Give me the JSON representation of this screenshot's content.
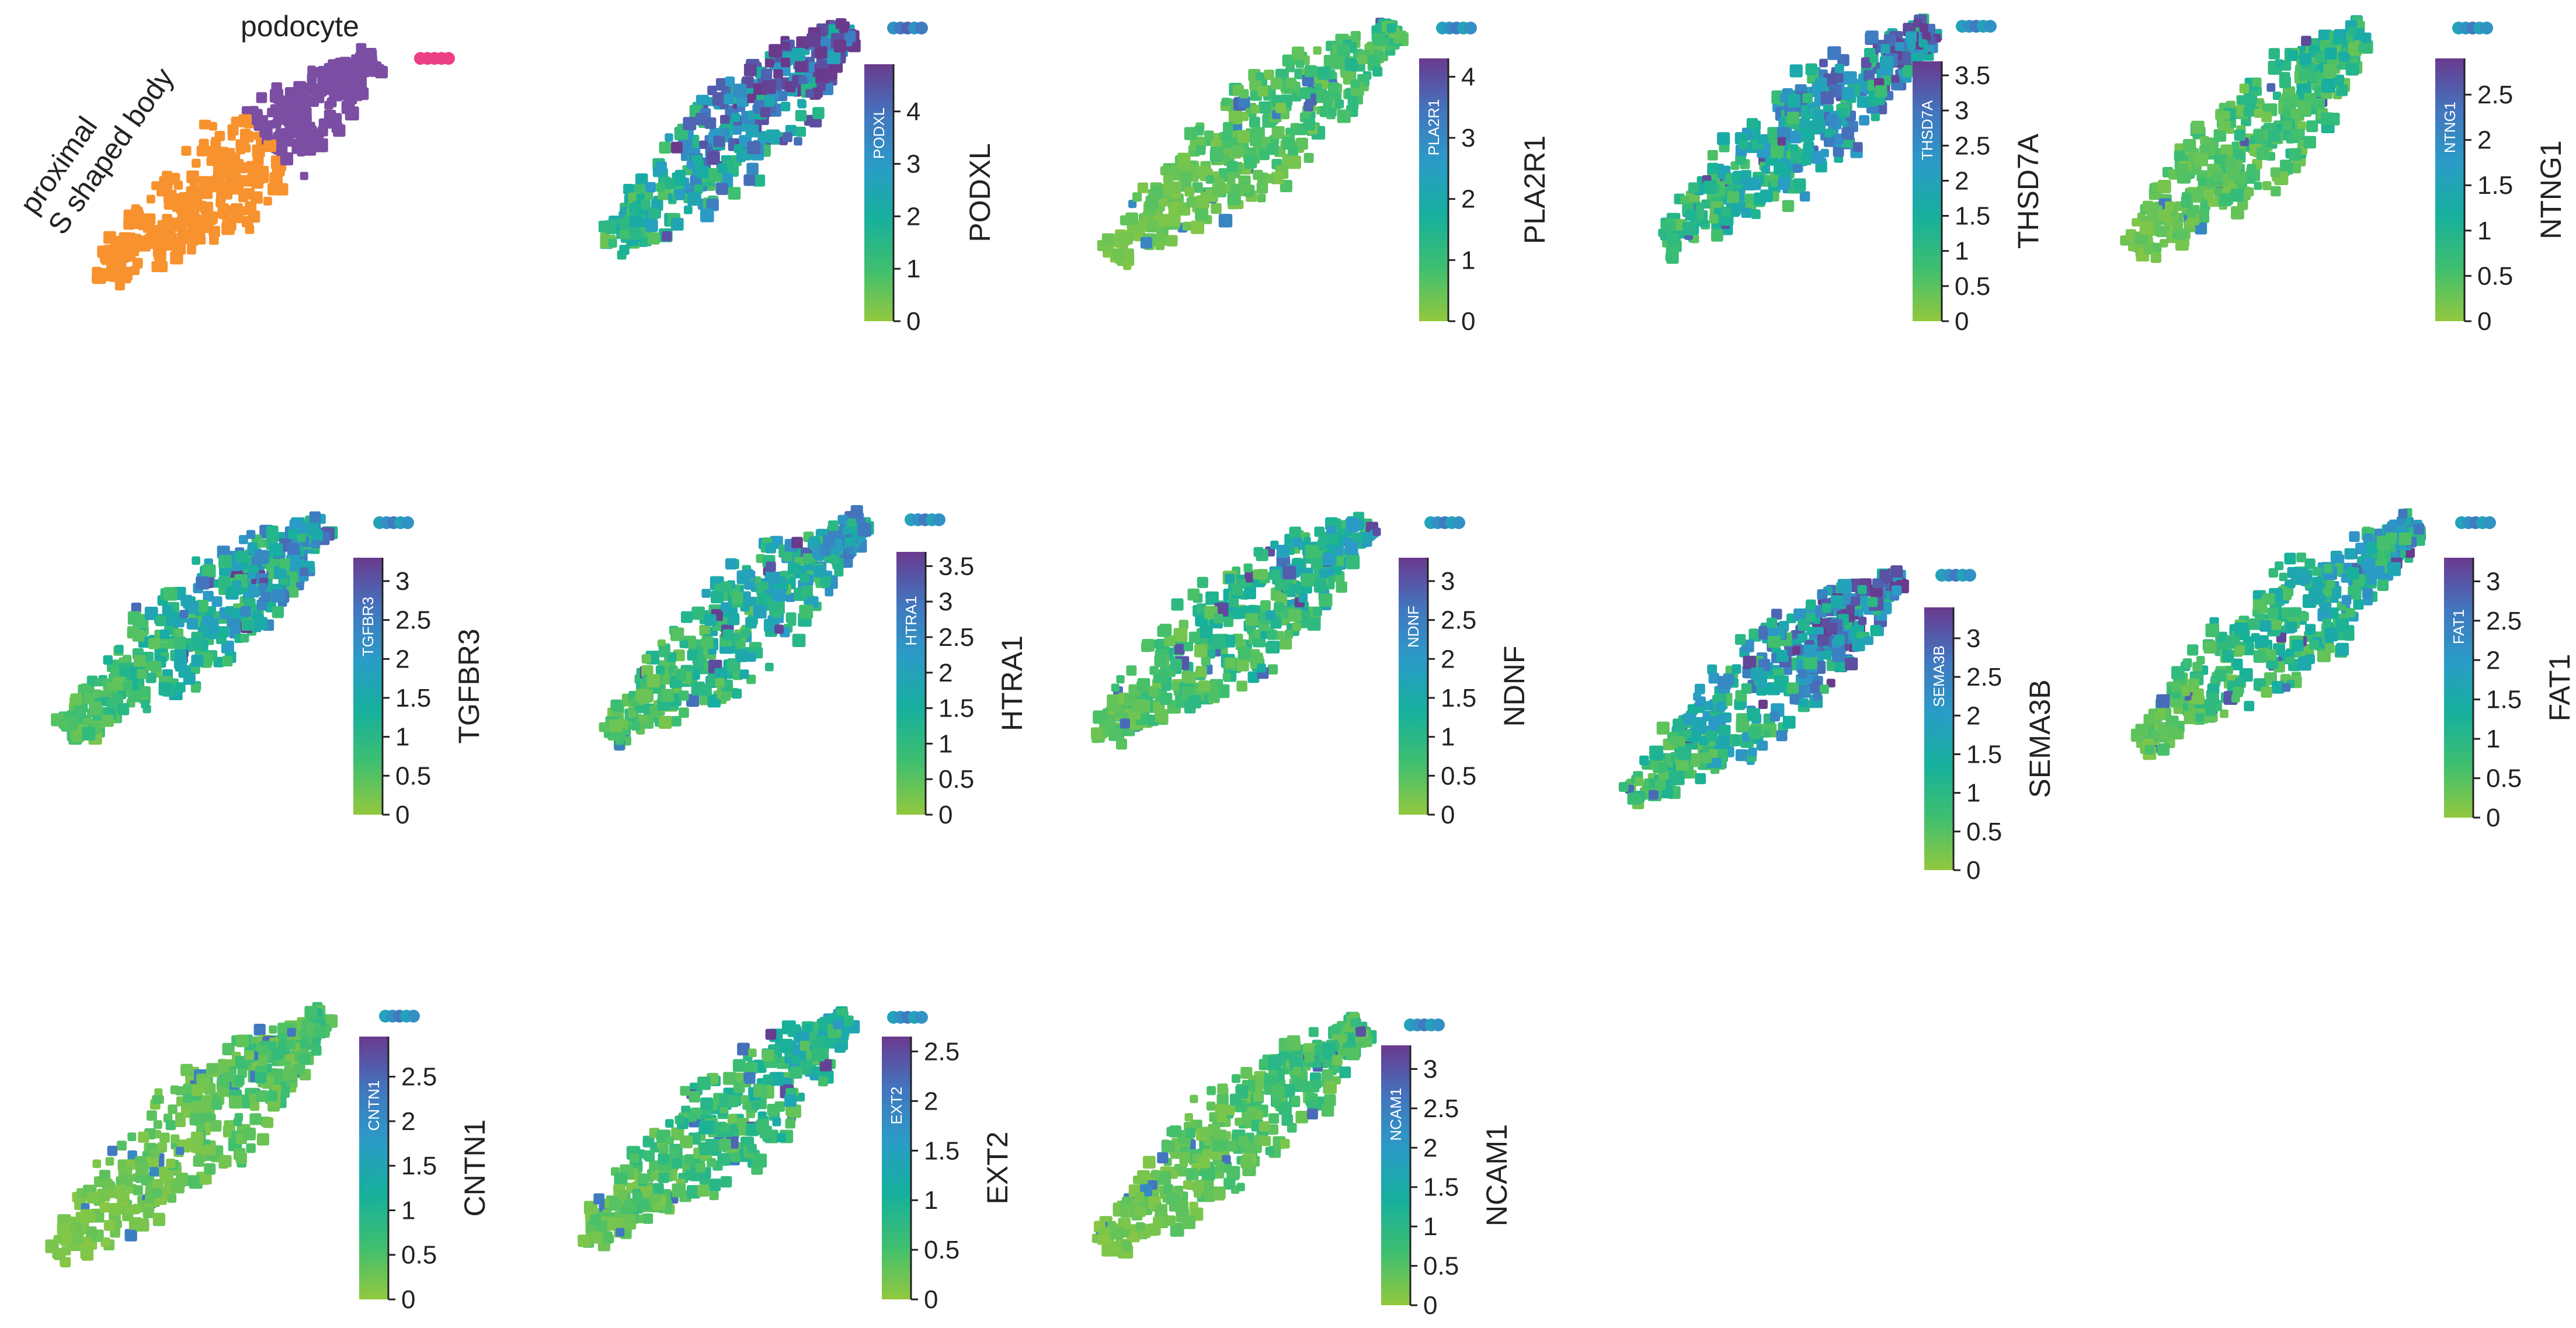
{
  "chart_data": [
    {
      "type": "scatter",
      "panel": "clusters",
      "labels": [
        "podocyte",
        "proximal",
        "S shaped body"
      ],
      "colors": {
        "proximal": "#f7922e",
        "podocyte": "#7b4ea3",
        "other": "#ec3f86"
      }
    },
    {
      "type": "scatter",
      "gene": "PODXL",
      "colorbar": {
        "ticks": [
          "0",
          "1",
          "2",
          "3",
          "4"
        ],
        "range": [
          0,
          4.9
        ]
      }
    },
    {
      "type": "scatter",
      "gene": "PLA2R1",
      "colorbar": {
        "ticks": [
          "0",
          "1",
          "2",
          "3",
          "4"
        ],
        "range": [
          0,
          4.3
        ]
      }
    },
    {
      "type": "scatter",
      "gene": "THSD7A",
      "colorbar": {
        "ticks": [
          "0",
          "0.5",
          "1",
          "1.5",
          "2",
          "2.5",
          "3",
          "3.5"
        ],
        "range": [
          0,
          3.7
        ]
      }
    },
    {
      "type": "scatter",
      "gene": "NTNG1",
      "colorbar": {
        "ticks": [
          "0",
          "0.5",
          "1",
          "1.5",
          "2",
          "2.5"
        ],
        "range": [
          0,
          2.9
        ]
      }
    },
    {
      "type": "scatter",
      "gene": "TGFBR3",
      "colorbar": {
        "ticks": [
          "0",
          "0.5",
          "1",
          "1.5",
          "2",
          "2.5",
          "3"
        ],
        "range": [
          0,
          3.3
        ]
      }
    },
    {
      "type": "scatter",
      "gene": "HTRA1",
      "colorbar": {
        "ticks": [
          "0",
          "0.5",
          "1",
          "1.5",
          "2",
          "2.5",
          "3",
          "3.5"
        ],
        "range": [
          0,
          3.7
        ]
      }
    },
    {
      "type": "scatter",
      "gene": "NDNF",
      "colorbar": {
        "ticks": [
          "0",
          "0.5",
          "1",
          "1.5",
          "2",
          "2.5",
          "3"
        ],
        "range": [
          0,
          3.3
        ]
      }
    },
    {
      "type": "scatter",
      "gene": "SEMA3B",
      "colorbar": {
        "ticks": [
          "0",
          "0.5",
          "1",
          "1.5",
          "2",
          "2.5",
          "3"
        ],
        "range": [
          0,
          3.4
        ]
      }
    },
    {
      "type": "scatter",
      "gene": "FAT1",
      "colorbar": {
        "ticks": [
          "0",
          "0.5",
          "1",
          "1.5",
          "2",
          "2.5",
          "3"
        ],
        "range": [
          0,
          3.3
        ]
      }
    },
    {
      "type": "scatter",
      "gene": "CNTN1",
      "colorbar": {
        "ticks": [
          "0",
          "0.5",
          "1",
          "1.5",
          "2",
          "2.5"
        ],
        "range": [
          0,
          2.95
        ]
      }
    },
    {
      "type": "scatter",
      "gene": "EXT2",
      "colorbar": {
        "ticks": [
          "0",
          "0.5",
          "1",
          "1.5",
          "2",
          "2.5"
        ],
        "range": [
          0,
          2.65
        ]
      }
    },
    {
      "type": "scatter",
      "gene": "NCAM1",
      "colorbar": {
        "ticks": [
          "0",
          "0.5",
          "1",
          "1.5",
          "2",
          "2.5",
          "3"
        ],
        "range": [
          0,
          3.3
        ]
      }
    }
  ],
  "colors": {
    "colormap": [
      "#92c83e",
      "#3fbf6f",
      "#16b09c",
      "#2a9cc7",
      "#4276bf",
      "#5a51a3",
      "#6a3a8c"
    ],
    "tick_text": "#222222"
  }
}
